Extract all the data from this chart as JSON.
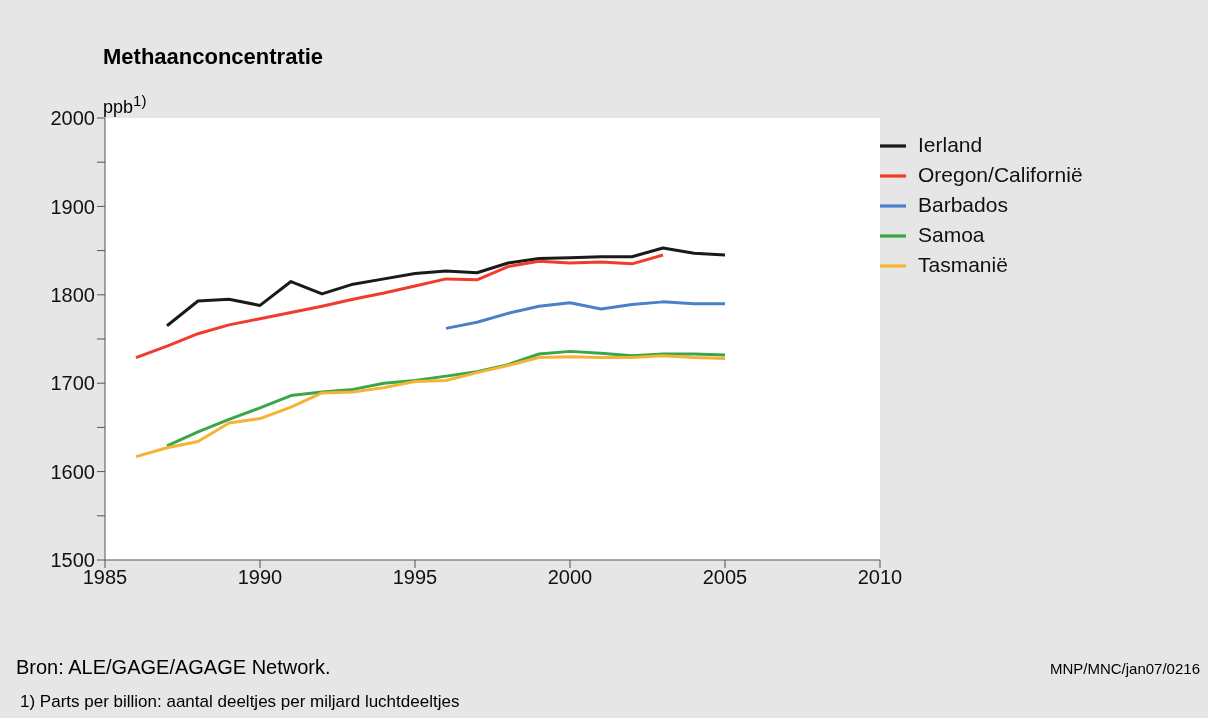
{
  "chart_data": {
    "type": "line",
    "title": "Methaanconcentratie",
    "ylabel": "ppb$^{1)}$",
    "x": [
      1986,
      1987,
      1988,
      1989,
      1990,
      1991,
      1992,
      1993,
      1994,
      1995,
      1996,
      1997,
      1998,
      1999,
      2000,
      2001,
      2002,
      2003,
      2004,
      2005
    ],
    "series": [
      {
        "name": "Ierland",
        "color": "#1a1a1a",
        "values": [
          null,
          1765,
          1793,
          1795,
          1788,
          1815,
          1801,
          1812,
          1818,
          1824,
          1827,
          1825,
          1836,
          1841,
          1842,
          1843,
          1843,
          1853,
          1847,
          1845
        ]
      },
      {
        "name": "Oregon/Californië",
        "color": "#f03c2d",
        "values": [
          1729,
          1742,
          1756,
          1766,
          1773,
          1780,
          1787,
          1795,
          1802,
          1810,
          1818,
          1817,
          1832,
          1838,
          1836,
          1837,
          1835,
          1845,
          null,
          null
        ]
      },
      {
        "name": "Barbados",
        "color": "#4a80c8",
        "values": [
          null,
          null,
          null,
          null,
          null,
          null,
          null,
          null,
          null,
          null,
          1762,
          1769,
          1779,
          1787,
          1791,
          1784,
          1789,
          1792,
          1790,
          1790
        ]
      },
      {
        "name": "Samoa",
        "color": "#3aa64a",
        "values": [
          null,
          1629,
          1645,
          1659,
          1672,
          1686,
          1690,
          1693,
          1700,
          1703,
          1708,
          1713,
          1721,
          1733,
          1736,
          1734,
          1731,
          1733,
          1733,
          1732
        ]
      },
      {
        "name": "Tasmanië",
        "color": "#f5b335",
        "values": [
          1617,
          1627,
          1634,
          1655,
          1660,
          1673,
          1689,
          1690,
          1695,
          1702,
          1703,
          1712,
          1720,
          1729,
          1730,
          1729,
          1729,
          1731,
          1729,
          1728
        ]
      }
    ],
    "xlim": [
      1985,
      2010
    ],
    "xticks": [
      1985,
      1990,
      1995,
      2000,
      2005,
      2010
    ],
    "ylim": [
      1500,
      2000
    ],
    "yticks": [
      1500,
      {
        "value": 1550,
        "label": null
      },
      1600,
      {
        "value": 1650,
        "label": null
      },
      1700,
      {
        "value": 1750,
        "label": null
      },
      1800,
      {
        "value": 1850,
        "label": null
      },
      1900,
      {
        "value": 1950,
        "label": null
      },
      2000
    ],
    "grid": false,
    "legend": "right",
    "marker": "none",
    "line_style": "solid",
    "annotations": [
      "Bron: ALE/GAGE/AGAGE Network.",
      "1) Parts per billion: aantal deeltjes per miljard luchtdeeltjes",
      "MNP/MNC/jan07/0216"
    ]
  }
}
